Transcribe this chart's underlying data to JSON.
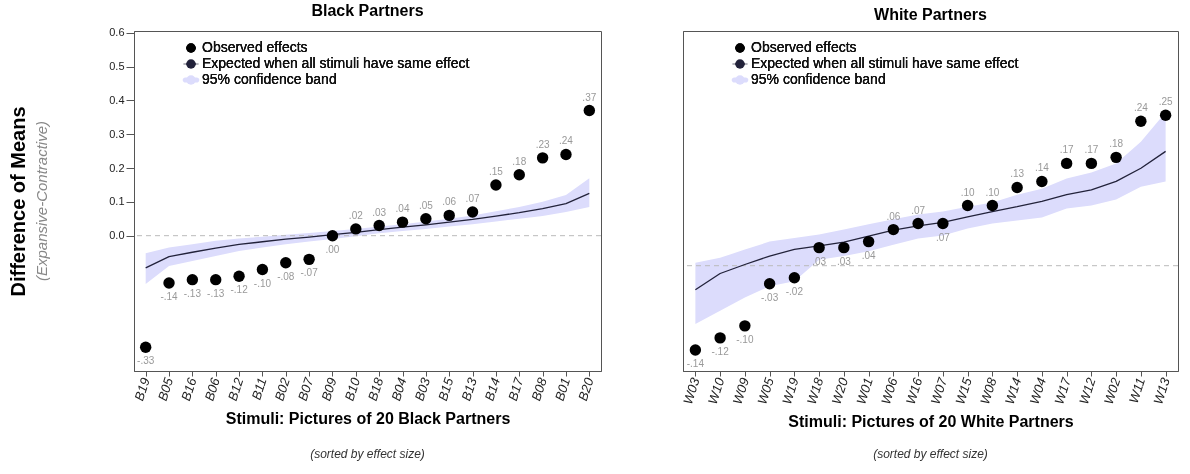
{
  "chart_data": [
    {
      "type": "scatter",
      "title": "Black Partners",
      "xlabel": "Stimuli: Pictures of 20 Black Partners",
      "ylabel": "Difference of Means",
      "annotations": [
        "(Expansive-Contractive)",
        "(sorted by effect size)"
      ],
      "categories": [
        "B19",
        "B05",
        "B16",
        "B06",
        "B12",
        "B11",
        "B02",
        "B07",
        "B09",
        "B10",
        "B18",
        "B04",
        "B03",
        "B15",
        "B13",
        "B14",
        "B17",
        "B08",
        "B01",
        "B20"
      ],
      "ylim": [
        -0.4,
        0.605
      ],
      "yticks": [
        {
          "value": 0,
          "label": "0.0"
        },
        0.1,
        0.2,
        0.3,
        0.4,
        0.5,
        0.6
      ],
      "ref_lines": [
        {
          "axis": "y",
          "value": 0,
          "color": "#bbbbbb",
          "line_style": "dashed"
        }
      ],
      "legend": "top left",
      "grid": false,
      "series": [
        {
          "type": "scatter",
          "name": "Observed effects",
          "color": "#000000",
          "marker": "circle",
          "values": [
            -0.33,
            -0.14,
            -0.13,
            -0.13,
            -0.12,
            -0.1,
            -0.08,
            -0.07,
            0.0,
            0.02,
            0.03,
            0.04,
            0.05,
            0.06,
            0.07,
            0.15,
            0.18,
            0.23,
            0.24,
            0.37
          ],
          "value_labels": [
            "-.33",
            "-.14",
            "-.13",
            "-.13",
            "-.12",
            "-.10",
            "-.08",
            "-.07",
            ".00",
            ".02",
            ".03",
            ".04",
            ".05",
            ".06",
            ".07",
            ".15",
            ".18",
            ".23",
            ".24",
            ".37"
          ]
        },
        {
          "type": "line",
          "name": "Expected when all stimuli have same effect",
          "color": "#22223a",
          "line_style": "solid",
          "values": [
            -0.095,
            -0.062,
            -0.049,
            -0.037,
            -0.026,
            -0.018,
            -0.01,
            -0.004,
            0.003,
            0.01,
            0.018,
            0.025,
            0.032,
            0.04,
            0.048,
            0.058,
            0.068,
            0.08,
            0.095,
            0.125
          ],
          "lower": [
            -0.143,
            -0.09,
            -0.075,
            -0.06,
            -0.045,
            -0.035,
            -0.025,
            -0.017,
            -0.01,
            -0.002,
            0.007,
            0.014,
            0.02,
            0.027,
            0.034,
            0.042,
            0.05,
            0.058,
            0.07,
            0.085
          ],
          "upper": [
            -0.052,
            -0.035,
            -0.025,
            -0.015,
            -0.008,
            -0.003,
            0.003,
            0.008,
            0.014,
            0.02,
            0.027,
            0.034,
            0.042,
            0.05,
            0.06,
            0.072,
            0.085,
            0.1,
            0.12,
            0.17
          ]
        },
        {
          "type": "area",
          "name": "95% confidence band",
          "color": "#dcdcfc",
          "values": [
            null,
            null,
            null,
            null,
            null,
            null,
            null,
            null,
            null,
            null,
            null,
            null,
            null,
            null,
            null,
            null,
            null,
            null,
            null,
            null
          ]
        }
      ]
    },
    {
      "type": "scatter",
      "title": "White Partners",
      "xlabel": "Stimuli: Pictures of 20 White Partners",
      "annotations": [
        "(sorted by effect size)"
      ],
      "categories": [
        "W03",
        "W10",
        "W09",
        "W05",
        "W19",
        "W18",
        "W20",
        "W01",
        "W06",
        "W16",
        "W07",
        "W15",
        "W08",
        "W14",
        "W04",
        "W17",
        "W12",
        "W02",
        "W11",
        "W13"
      ],
      "ylim": [
        -0.175,
        0.39
      ],
      "tick_labels": "x",
      "ref_lines": [
        {
          "axis": "y",
          "value": 0,
          "color": "#bbbbbb",
          "line_style": "dashed"
        }
      ],
      "legend": "top left",
      "grid": false,
      "series": [
        {
          "type": "scatter",
          "name": "Observed effects",
          "color": "#000000",
          "marker": "circle",
          "values": [
            -0.14,
            -0.12,
            -0.1,
            -0.03,
            -0.02,
            0.03,
            0.03,
            0.04,
            0.06,
            0.07,
            0.07,
            0.1,
            0.1,
            0.13,
            0.14,
            0.17,
            0.17,
            0.18,
            0.24,
            0.25
          ],
          "value_labels": [
            "-.14",
            "-.12",
            "-.10",
            "-.03",
            "-.02",
            ".03",
            ".03",
            ".04",
            ".06",
            ".07",
            ".07",
            ".10",
            ".10",
            ".13",
            ".14",
            ".17",
            ".17",
            ".18",
            ".24",
            ".25"
          ]
        },
        {
          "type": "line",
          "name": "Expected when all stimuli have same effect",
          "color": "#22223a",
          "line_style": "solid",
          "values": [
            -0.04,
            -0.013,
            0.002,
            0.016,
            0.027,
            0.033,
            0.039,
            0.049,
            0.059,
            0.066,
            0.072,
            0.081,
            0.09,
            0.098,
            0.107,
            0.118,
            0.126,
            0.14,
            0.162,
            0.19
          ],
          "lower": [
            -0.097,
            -0.075,
            -0.053,
            -0.034,
            -0.026,
            0.01,
            0.016,
            0.024,
            0.035,
            0.045,
            0.05,
            0.062,
            0.07,
            0.075,
            0.08,
            0.095,
            0.1,
            0.11,
            0.131,
            0.14
          ],
          "upper": [
            0.005,
            0.013,
            0.027,
            0.04,
            0.046,
            0.052,
            0.06,
            0.069,
            0.077,
            0.085,
            0.09,
            0.098,
            0.105,
            0.118,
            0.128,
            0.145,
            0.155,
            0.17,
            0.206,
            0.255
          ]
        },
        {
          "type": "area",
          "name": "95% confidence band",
          "color": "#dcdcfc",
          "values": [
            null,
            null,
            null,
            null,
            null,
            null,
            null,
            null,
            null,
            null,
            null,
            null,
            null,
            null,
            null,
            null,
            null,
            null,
            null,
            null
          ]
        }
      ]
    }
  ]
}
